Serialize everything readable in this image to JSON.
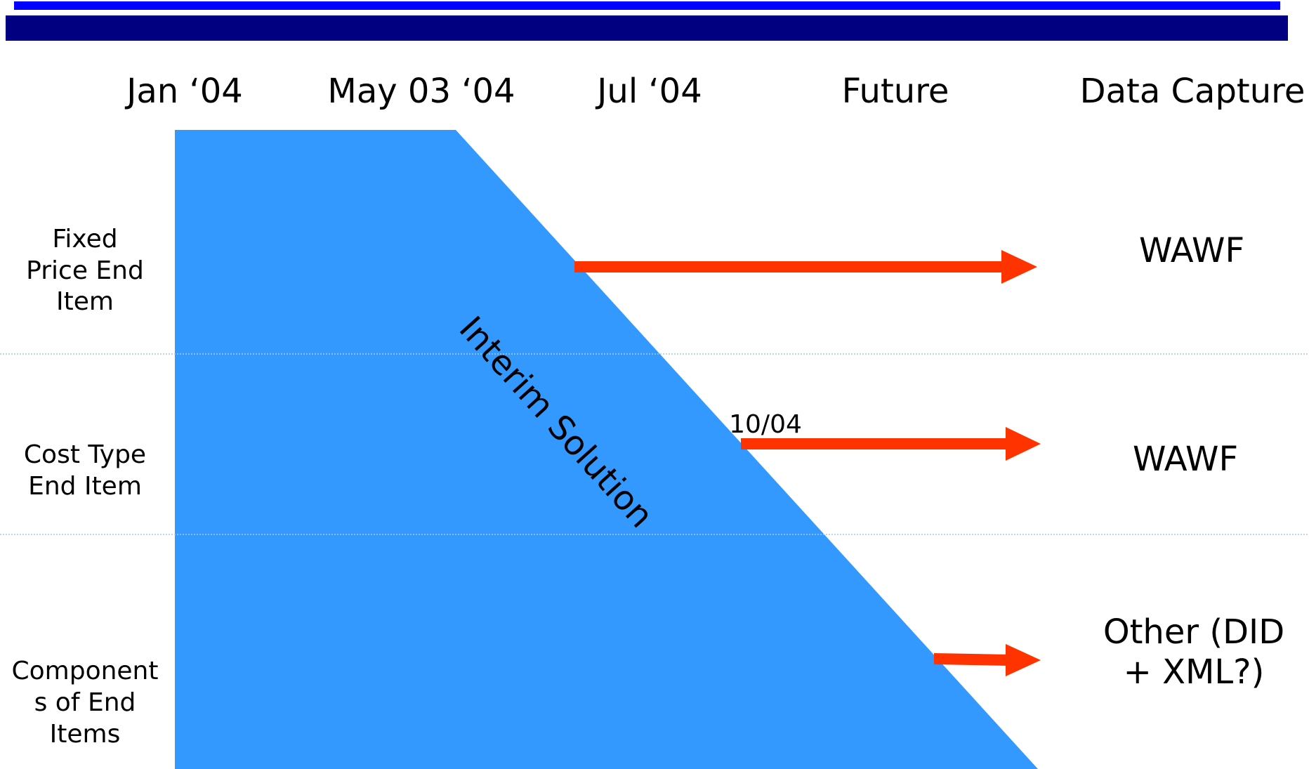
{
  "colors": {
    "top_rule_bright": "#0000ff",
    "top_rule_dark": "#000080",
    "interim_fill": "#3399ff",
    "arrow": "#ff3300",
    "divider": "#a8c8e0"
  },
  "timeline": {
    "headers": [
      "Jan ‘04",
      "May 03 ‘04",
      "Jul ‘04",
      "Future",
      "Data Capture"
    ]
  },
  "rows": [
    {
      "label": [
        "Fixed",
        "Price End",
        "Item"
      ],
      "capture": [
        "WAWF"
      ]
    },
    {
      "label": [
        "Cost Type",
        "End Item"
      ],
      "capture": [
        "WAWF"
      ],
      "marker": "10/04"
    },
    {
      "label": [
        "Component",
        "s of End",
        "Items"
      ],
      "capture": [
        "Other (DID",
        "+ XML?)"
      ]
    }
  ],
  "interim": {
    "label": "Interim Solution"
  }
}
